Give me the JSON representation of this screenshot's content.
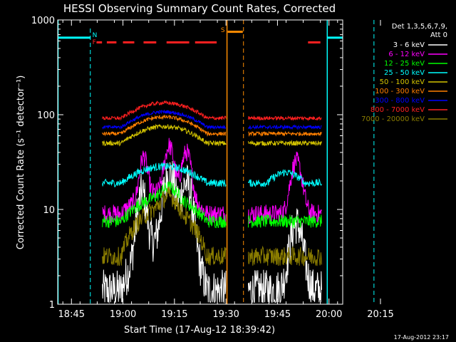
{
  "chart_data": {
    "type": "line",
    "title": "HESSI Observing Summary Count Rates, Corrected",
    "xlabel": "Start Time (17-Aug-12 18:39:42)",
    "ylabel": "Corrected Count Rate (s⁻¹ detector⁻¹)",
    "y_scale": "log",
    "ylim": [
      1,
      1000
    ],
    "xlim_minutes": [
      18.5,
      101.5
    ],
    "x_ticks": [
      {
        "label": "18:45",
        "m": 22.5
      },
      {
        "label": "19:00",
        "m": 37.5
      },
      {
        "label": "19:15",
        "m": 52.5
      },
      {
        "label": "19:30",
        "m": 67.5
      },
      {
        "label": "19:45",
        "m": 82.5
      },
      {
        "label": "20:00",
        "m": 97.5
      },
      {
        "label": "20:15",
        "m": 112.5
      }
    ],
    "y_ticks": [
      {
        "label": "1",
        "v": 1
      },
      {
        "label": "10",
        "v": 10
      },
      {
        "label": "100",
        "v": 100
      },
      {
        "label": "1000",
        "v": 1000
      }
    ],
    "legend_header": [
      "Det 1,3,5,6,7,9,",
      "Att 0"
    ],
    "legend_position": "right",
    "timestamp": "17-Aug-2012 23:17",
    "markers": [
      {
        "label": "N",
        "color": "#00ffff"
      },
      {
        "label": "F",
        "color": "#ff2020"
      },
      {
        "label": "S",
        "color": "#ff8c00"
      }
    ],
    "series": [
      {
        "name": "3 - 6 keV",
        "color": "#ffffff"
      },
      {
        "name": "6 - 12 keV",
        "color": "#ff00ff"
      },
      {
        "name": "12 - 25 keV",
        "color": "#00ff00"
      },
      {
        "name": "25 - 50 keV",
        "color": "#00ffff"
      },
      {
        "name": "50 - 100 keV",
        "color": "#d4c400"
      },
      {
        "name": "100 - 300 keV",
        "color": "#ff7f00"
      },
      {
        "name": "300 - 800 keV",
        "color": "#0000ff"
      },
      {
        "name": "800 - 7000 keV",
        "color": "#ff2020"
      },
      {
        "name": "7000 - 20000 keV",
        "color": "#8b7d00"
      }
    ]
  }
}
